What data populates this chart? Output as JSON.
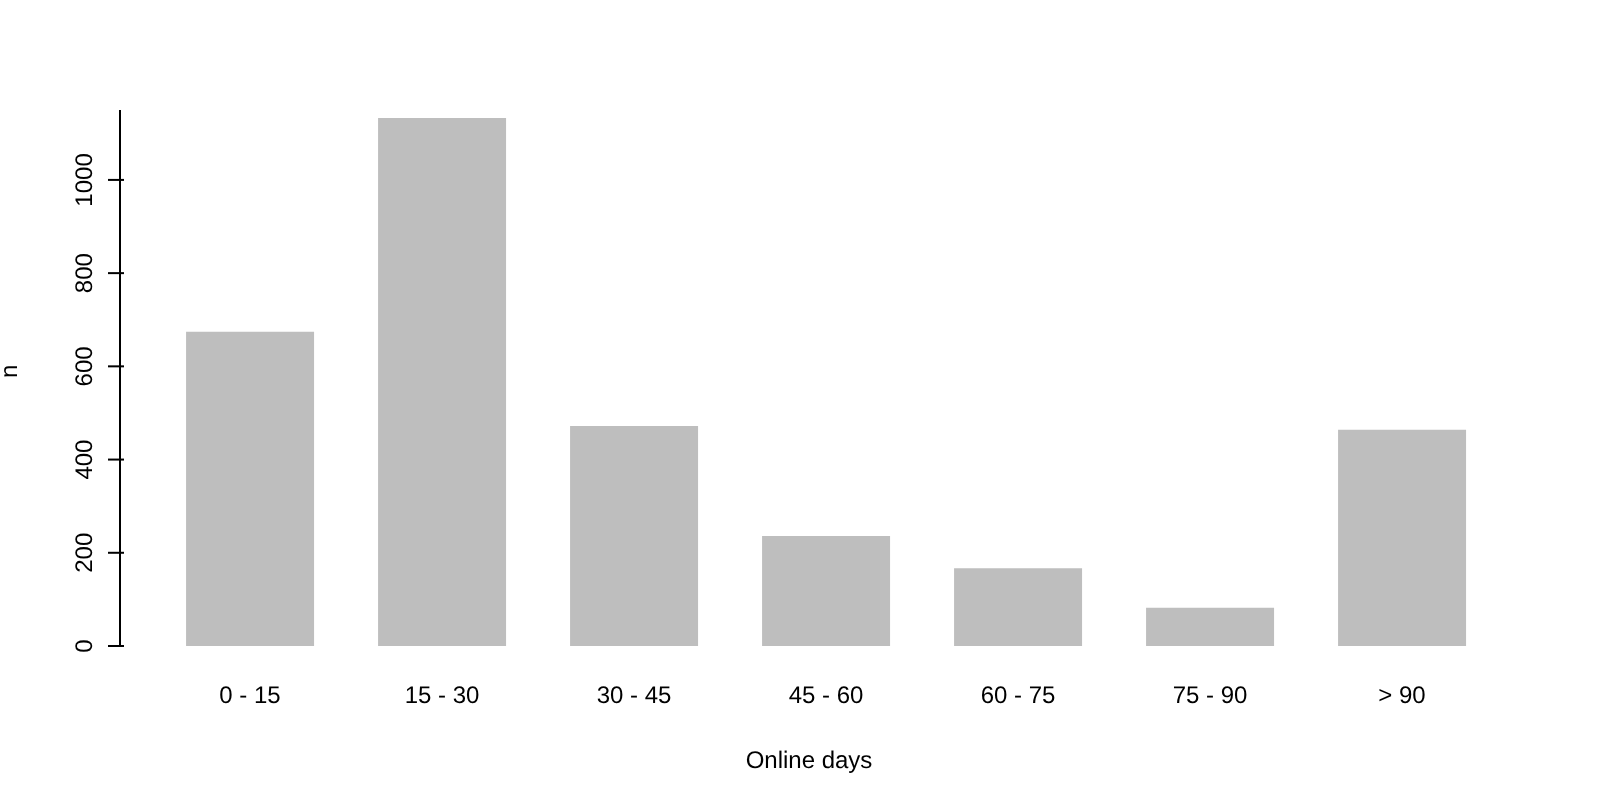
{
  "chart_data": {
    "type": "bar",
    "xlabel": "Online days",
    "ylabel": "n",
    "categories": [
      "0 - 15",
      "15 - 30",
      "30 - 45",
      "45 - 60",
      "60 - 75",
      "75 - 90",
      "> 90"
    ],
    "values": [
      674,
      1133,
      472,
      236,
      167,
      82,
      464
    ],
    "color": "#bebebe",
    "ylim": [
      0,
      1150
    ],
    "yticks": [
      0,
      200,
      400,
      600,
      800,
      1000
    ],
    "grid": false,
    "legend": false
  }
}
